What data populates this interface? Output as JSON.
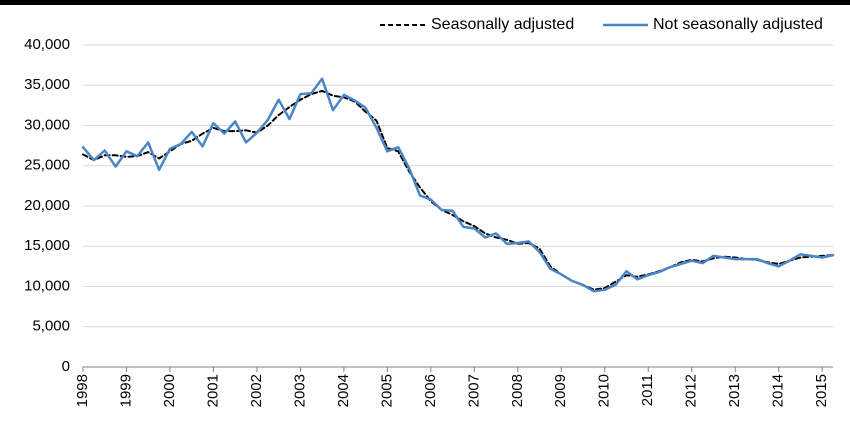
{
  "chart_data": {
    "type": "line",
    "title": "",
    "xlabel": "",
    "ylabel": "",
    "x_tick_labels": [
      "1998",
      "1999",
      "2000",
      "2001",
      "2002",
      "2003",
      "2004",
      "2005",
      "2006",
      "2007",
      "2008",
      "2009",
      "2010",
      "2011",
      "2012",
      "2013",
      "2014",
      "2015"
    ],
    "xlim": [
      1998,
      2015.25
    ],
    "y_tick_labels": [
      "0",
      "5,000",
      "10,000",
      "15,000",
      "20,000",
      "25,000",
      "30,000",
      "35,000",
      "40,000"
    ],
    "y_ticks": [
      0,
      5000,
      10000,
      15000,
      20000,
      25000,
      30000,
      35000,
      40000
    ],
    "ylim": [
      0,
      40000
    ],
    "grid": "horizontal",
    "legend_position": "top-right",
    "x": [
      1998.0,
      1998.25,
      1998.5,
      1998.75,
      1999.0,
      1999.25,
      1999.5,
      1999.75,
      2000.0,
      2000.25,
      2000.5,
      2000.75,
      2001.0,
      2001.25,
      2001.5,
      2001.75,
      2002.0,
      2002.25,
      2002.5,
      2002.75,
      2003.0,
      2003.25,
      2003.5,
      2003.75,
      2004.0,
      2004.25,
      2004.5,
      2004.75,
      2005.0,
      2005.25,
      2005.5,
      2005.75,
      2006.0,
      2006.25,
      2006.5,
      2006.75,
      2007.0,
      2007.25,
      2007.5,
      2007.75,
      2008.0,
      2008.25,
      2008.5,
      2008.75,
      2009.0,
      2009.25,
      2009.5,
      2009.75,
      2010.0,
      2010.25,
      2010.5,
      2010.75,
      2011.0,
      2011.25,
      2011.5,
      2011.75,
      2012.0,
      2012.25,
      2012.5,
      2012.75,
      2013.0,
      2013.25,
      2013.5,
      2013.75,
      2014.0,
      2014.25,
      2014.5,
      2014.75,
      2015.0,
      2015.25
    ],
    "series": [
      {
        "name": "Seasonally adjusted",
        "color": "#000000",
        "style": "dashed",
        "values": [
          26400,
          25700,
          26300,
          26300,
          26100,
          26200,
          26700,
          25900,
          26800,
          27700,
          28100,
          29000,
          29700,
          29300,
          29300,
          29400,
          29100,
          30000,
          31300,
          32300,
          33200,
          33900,
          34300,
          33700,
          33500,
          33000,
          31700,
          30600,
          27200,
          26800,
          24300,
          22300,
          20600,
          19500,
          18900,
          18100,
          17500,
          16600,
          16100,
          15800,
          15300,
          15400,
          14700,
          12500,
          11500,
          10700,
          10200,
          9600,
          9800,
          10600,
          11400,
          11200,
          11500,
          11900,
          12400,
          13000,
          13300,
          13100,
          13500,
          13700,
          13600,
          13400,
          13300,
          13000,
          12800,
          13200,
          13600,
          13700,
          13800,
          13900
        ]
      },
      {
        "name": "Not seasonally adjusted",
        "color": "#4a86c5",
        "style": "solid",
        "values": [
          27300,
          25700,
          26900,
          24900,
          26800,
          26200,
          27900,
          24500,
          27100,
          27700,
          29200,
          27400,
          30300,
          29000,
          30500,
          27900,
          29100,
          30700,
          33200,
          30800,
          33900,
          34000,
          35800,
          31900,
          33800,
          33100,
          32200,
          29700,
          26800,
          27300,
          24700,
          21300,
          20800,
          19500,
          19400,
          17400,
          17200,
          16100,
          16600,
          15300,
          15400,
          15600,
          14300,
          12200,
          11500,
          10700,
          10200,
          9400,
          9600,
          10200,
          11900,
          10900,
          11400,
          11800,
          12400,
          12800,
          13200,
          12900,
          13800,
          13600,
          13400,
          13400,
          13400,
          12900,
          12500,
          13200,
          14000,
          13800,
          13600,
          13900
        ]
      }
    ]
  }
}
